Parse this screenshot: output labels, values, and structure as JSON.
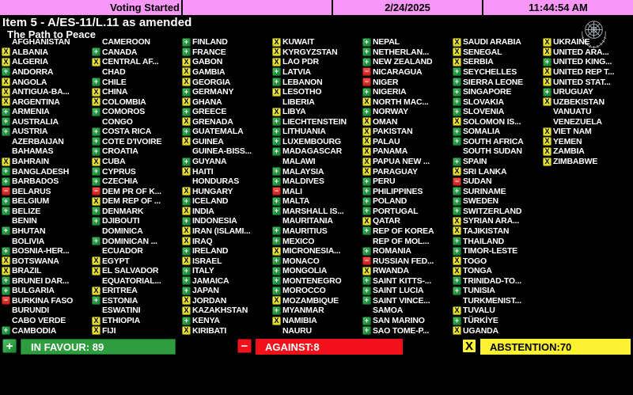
{
  "top_bar": {
    "status": "Voting Started",
    "date": "2/24/2025",
    "time": "11:44:54 AM",
    "background": "#f897f8"
  },
  "title": {
    "line1": "Item 5 - A/ES-11/L.11 as amended",
    "line2": "The Path to Peace"
  },
  "icons": {
    "in_favour_glyph": "+",
    "against_glyph": "−",
    "abstention_glyph": "X",
    "un_emblem": "un-emblem"
  },
  "vote_legend": {
    "Y": "in-favour",
    "N": "against",
    "A": "abstention",
    "": "not-voting"
  },
  "summary": {
    "in_favour": {
      "label": "IN FAVOUR: 89",
      "count": 89,
      "color": "#2e9c3f"
    },
    "against": {
      "label": "AGAINST:8",
      "count": 8,
      "color": "#f2111a"
    },
    "abstention": {
      "label": "ABSTENTION:70",
      "count": 70,
      "color": "#fdf231"
    }
  },
  "columns": [
    [
      {
        "name": "AFGHANISTAN",
        "vote": ""
      },
      {
        "name": "ALBANIA",
        "vote": "A"
      },
      {
        "name": "ALGERIA",
        "vote": "A"
      },
      {
        "name": "ANDORRA",
        "vote": "Y"
      },
      {
        "name": "ANGOLA",
        "vote": "A"
      },
      {
        "name": "ANTIGUA-BA...",
        "vote": "A"
      },
      {
        "name": "ARGENTINA",
        "vote": "A"
      },
      {
        "name": "ARMENIA",
        "vote": "Y"
      },
      {
        "name": "AUSTRALIA",
        "vote": "Y"
      },
      {
        "name": "AUSTRIA",
        "vote": "Y"
      },
      {
        "name": "AZERBAIJAN",
        "vote": ""
      },
      {
        "name": "BAHAMAS",
        "vote": ""
      },
      {
        "name": "BAHRAIN",
        "vote": "A"
      },
      {
        "name": "BANGLADESH",
        "vote": "Y"
      },
      {
        "name": "BARBADOS",
        "vote": "Y"
      },
      {
        "name": "BELARUS",
        "vote": "N"
      },
      {
        "name": "BELGIUM",
        "vote": "Y"
      },
      {
        "name": "BELIZE",
        "vote": "Y"
      },
      {
        "name": "BENIN",
        "vote": ""
      },
      {
        "name": "BHUTAN",
        "vote": "Y"
      },
      {
        "name": "BOLIVIA",
        "vote": ""
      },
      {
        "name": "BOSNIA-HER...",
        "vote": "Y"
      },
      {
        "name": "BOTSWANA",
        "vote": "A"
      },
      {
        "name": "BRAZIL",
        "vote": "A"
      },
      {
        "name": "BRUNEI DAR...",
        "vote": "Y"
      },
      {
        "name": "BULGARIA",
        "vote": "Y"
      },
      {
        "name": "BURKINA FASO",
        "vote": "N"
      },
      {
        "name": "BURUNDI",
        "vote": ""
      },
      {
        "name": "CABO VERDE",
        "vote": ""
      },
      {
        "name": "CAMBODIA",
        "vote": "Y"
      }
    ],
    [
      {
        "name": "CAMEROON",
        "vote": ""
      },
      {
        "name": "CANADA",
        "vote": "Y"
      },
      {
        "name": "CENTRAL AF...",
        "vote": "A"
      },
      {
        "name": "CHAD",
        "vote": ""
      },
      {
        "name": "CHILE",
        "vote": "Y"
      },
      {
        "name": "CHINA",
        "vote": "A"
      },
      {
        "name": "COLOMBIA",
        "vote": "A"
      },
      {
        "name": "COMOROS",
        "vote": "Y"
      },
      {
        "name": "CONGO",
        "vote": ""
      },
      {
        "name": "COSTA RICA",
        "vote": "Y"
      },
      {
        "name": "COTE D'IVOIRE",
        "vote": "Y"
      },
      {
        "name": "CROATIA",
        "vote": "Y"
      },
      {
        "name": "CUBA",
        "vote": "A"
      },
      {
        "name": "CYPRUS",
        "vote": "Y"
      },
      {
        "name": "CZECHIA",
        "vote": "Y"
      },
      {
        "name": "DEM PR OF K...",
        "vote": "N"
      },
      {
        "name": "DEM REP OF ...",
        "vote": "A"
      },
      {
        "name": "DENMARK",
        "vote": "Y"
      },
      {
        "name": "DJIBOUTI",
        "vote": "Y"
      },
      {
        "name": "DOMINICA",
        "vote": ""
      },
      {
        "name": "DOMINICAN ...",
        "vote": "Y"
      },
      {
        "name": "ECUADOR",
        "vote": ""
      },
      {
        "name": "EGYPT",
        "vote": "A"
      },
      {
        "name": "EL SALVADOR",
        "vote": "A"
      },
      {
        "name": "EQUATORIAL...",
        "vote": ""
      },
      {
        "name": "ERITREA",
        "vote": "A"
      },
      {
        "name": "ESTONIA",
        "vote": "Y"
      },
      {
        "name": "ESWATINI",
        "vote": ""
      },
      {
        "name": "ETHIOPIA",
        "vote": "A"
      },
      {
        "name": "FIJI",
        "vote": "A"
      }
    ],
    [
      {
        "name": "FINLAND",
        "vote": "Y"
      },
      {
        "name": "FRANCE",
        "vote": "Y"
      },
      {
        "name": "GABON",
        "vote": "A"
      },
      {
        "name": "GAMBIA",
        "vote": "A"
      },
      {
        "name": "GEORGIA",
        "vote": "A"
      },
      {
        "name": "GERMANY",
        "vote": "Y"
      },
      {
        "name": "GHANA",
        "vote": "A"
      },
      {
        "name": "GREECE",
        "vote": "Y"
      },
      {
        "name": "GRENADA",
        "vote": "A"
      },
      {
        "name": "GUATEMALA",
        "vote": "Y"
      },
      {
        "name": "GUINEA",
        "vote": "A"
      },
      {
        "name": "GUINEA-BISS...",
        "vote": ""
      },
      {
        "name": "GUYANA",
        "vote": "Y"
      },
      {
        "name": "HAITI",
        "vote": "A"
      },
      {
        "name": "HONDURAS",
        "vote": ""
      },
      {
        "name": "HUNGARY",
        "vote": "A"
      },
      {
        "name": "ICELAND",
        "vote": "Y"
      },
      {
        "name": "INDIA",
        "vote": "A"
      },
      {
        "name": "INDONESIA",
        "vote": "Y"
      },
      {
        "name": "IRAN (ISLAMI...",
        "vote": "A"
      },
      {
        "name": "IRAQ",
        "vote": "A"
      },
      {
        "name": "IRELAND",
        "vote": "Y"
      },
      {
        "name": "ISRAEL",
        "vote": "A"
      },
      {
        "name": "ITALY",
        "vote": "Y"
      },
      {
        "name": "JAMAICA",
        "vote": "Y"
      },
      {
        "name": "JAPAN",
        "vote": "Y"
      },
      {
        "name": "JORDAN",
        "vote": "A"
      },
      {
        "name": "KAZAKHSTAN",
        "vote": "A"
      },
      {
        "name": "KENYA",
        "vote": "Y"
      },
      {
        "name": "KIRIBATI",
        "vote": "A"
      }
    ],
    [
      {
        "name": "KUWAIT",
        "vote": "A"
      },
      {
        "name": "KYRGYZSTAN",
        "vote": "A"
      },
      {
        "name": "LAO PDR",
        "vote": "A"
      },
      {
        "name": "LATVIA",
        "vote": "Y"
      },
      {
        "name": "LEBANON",
        "vote": "Y"
      },
      {
        "name": "LESOTHO",
        "vote": "A"
      },
      {
        "name": "LIBERIA",
        "vote": ""
      },
      {
        "name": "LIBYA",
        "vote": "A"
      },
      {
        "name": "LIECHTENSTEIN",
        "vote": "Y"
      },
      {
        "name": "LITHUANIA",
        "vote": "Y"
      },
      {
        "name": "LUXEMBOURG",
        "vote": "Y"
      },
      {
        "name": "MADAGASCAR",
        "vote": "Y"
      },
      {
        "name": "MALAWI",
        "vote": ""
      },
      {
        "name": "MALAYSIA",
        "vote": "Y"
      },
      {
        "name": "MALDIVES",
        "vote": "Y"
      },
      {
        "name": "MALI",
        "vote": "N"
      },
      {
        "name": "MALTA",
        "vote": "Y"
      },
      {
        "name": "MARSHALL IS...",
        "vote": "Y"
      },
      {
        "name": "MAURITANIA",
        "vote": ""
      },
      {
        "name": "MAURITIUS",
        "vote": "Y"
      },
      {
        "name": "MEXICO",
        "vote": "Y"
      },
      {
        "name": "MICRONESIA...",
        "vote": "A"
      },
      {
        "name": "MONACO",
        "vote": "Y"
      },
      {
        "name": "MONGOLIA",
        "vote": "Y"
      },
      {
        "name": "MONTENEGRO",
        "vote": "Y"
      },
      {
        "name": "MOROCCO",
        "vote": "Y"
      },
      {
        "name": "MOZAMBIQUE",
        "vote": "A"
      },
      {
        "name": "MYANMAR",
        "vote": "Y"
      },
      {
        "name": "NAMIBIA",
        "vote": "A"
      },
      {
        "name": "NAURU",
        "vote": ""
      }
    ],
    [
      {
        "name": "NEPAL",
        "vote": "Y"
      },
      {
        "name": "NETHERLAN...",
        "vote": "Y"
      },
      {
        "name": "NEW ZEALAND",
        "vote": "Y"
      },
      {
        "name": "NICARAGUA",
        "vote": "N"
      },
      {
        "name": "NIGER",
        "vote": "N"
      },
      {
        "name": "NIGERIA",
        "vote": "Y"
      },
      {
        "name": "NORTH MAC...",
        "vote": "A"
      },
      {
        "name": "NORWAY",
        "vote": "Y"
      },
      {
        "name": "OMAN",
        "vote": "A"
      },
      {
        "name": "PAKISTAN",
        "vote": "A"
      },
      {
        "name": "PALAU",
        "vote": "A"
      },
      {
        "name": "PANAMA",
        "vote": "A"
      },
      {
        "name": "PAPUA NEW ...",
        "vote": "A"
      },
      {
        "name": "PARAGUAY",
        "vote": "A"
      },
      {
        "name": "PERU",
        "vote": "Y"
      },
      {
        "name": "PHILIPPINES",
        "vote": "Y"
      },
      {
        "name": "POLAND",
        "vote": "Y"
      },
      {
        "name": "PORTUGAL",
        "vote": "Y"
      },
      {
        "name": "QATAR",
        "vote": "A"
      },
      {
        "name": "REP OF KOREA",
        "vote": "Y"
      },
      {
        "name": "REP OF MOL...",
        "vote": ""
      },
      {
        "name": "ROMANIA",
        "vote": "Y"
      },
      {
        "name": "RUSSIAN FED...",
        "vote": "N"
      },
      {
        "name": "RWANDA",
        "vote": "A"
      },
      {
        "name": "SAINT KITTS-...",
        "vote": "Y"
      },
      {
        "name": "SAINT LUCIA",
        "vote": "Y"
      },
      {
        "name": "SAINT VINCE...",
        "vote": "Y"
      },
      {
        "name": "SAMOA",
        "vote": ""
      },
      {
        "name": "SAN MARINO",
        "vote": "Y"
      },
      {
        "name": "SAO TOME-P...",
        "vote": "Y"
      }
    ],
    [
      {
        "name": "SAUDI ARABIA",
        "vote": "A"
      },
      {
        "name": "SENEGAL",
        "vote": "A"
      },
      {
        "name": "SERBIA",
        "vote": "A"
      },
      {
        "name": "SEYCHELLES",
        "vote": "Y"
      },
      {
        "name": "SIERRA LEONE",
        "vote": "Y"
      },
      {
        "name": "SINGAPORE",
        "vote": "Y"
      },
      {
        "name": "SLOVAKIA",
        "vote": "Y"
      },
      {
        "name": "SLOVENIA",
        "vote": "Y"
      },
      {
        "name": "SOLOMON IS...",
        "vote": "A"
      },
      {
        "name": "SOMALIA",
        "vote": "Y"
      },
      {
        "name": "SOUTH AFRICA",
        "vote": "Y"
      },
      {
        "name": "SOUTH SUDAN",
        "vote": ""
      },
      {
        "name": "SPAIN",
        "vote": "Y"
      },
      {
        "name": "SRI LANKA",
        "vote": "A"
      },
      {
        "name": "SUDAN",
        "vote": "N"
      },
      {
        "name": "SURINAME",
        "vote": "Y"
      },
      {
        "name": "SWEDEN",
        "vote": "Y"
      },
      {
        "name": "SWITZERLAND",
        "vote": "Y"
      },
      {
        "name": "SYRIAN ARA...",
        "vote": "A"
      },
      {
        "name": "TAJIKISTAN",
        "vote": "A"
      },
      {
        "name": "THAILAND",
        "vote": "Y"
      },
      {
        "name": "TIMOR-LESTE",
        "vote": "Y"
      },
      {
        "name": "TOGO",
        "vote": "A"
      },
      {
        "name": "TONGA",
        "vote": "A"
      },
      {
        "name": "TRINIDAD-TO...",
        "vote": "Y"
      },
      {
        "name": "TUNISIA",
        "vote": "Y"
      },
      {
        "name": "TURKMENIST...",
        "vote": ""
      },
      {
        "name": "TUVALU",
        "vote": "A"
      },
      {
        "name": "TÜRKİYE",
        "vote": "Y"
      },
      {
        "name": "UGANDA",
        "vote": "A"
      }
    ],
    [
      {
        "name": "UKRAINE",
        "vote": "A"
      },
      {
        "name": "UNITED ARA...",
        "vote": "A"
      },
      {
        "name": "UNITED KING...",
        "vote": "Y"
      },
      {
        "name": "UNITED REP T...",
        "vote": "A"
      },
      {
        "name": "UNITED STAT...",
        "vote": "A"
      },
      {
        "name": "URUGUAY",
        "vote": "Y"
      },
      {
        "name": "UZBEKISTAN",
        "vote": "A"
      },
      {
        "name": "VANUATU",
        "vote": ""
      },
      {
        "name": "VENEZUELA",
        "vote": ""
      },
      {
        "name": "VIET NAM",
        "vote": "A"
      },
      {
        "name": "YEMEN",
        "vote": "A"
      },
      {
        "name": "ZAMBIA",
        "vote": "A"
      },
      {
        "name": "ZIMBABWE",
        "vote": "A"
      }
    ]
  ]
}
